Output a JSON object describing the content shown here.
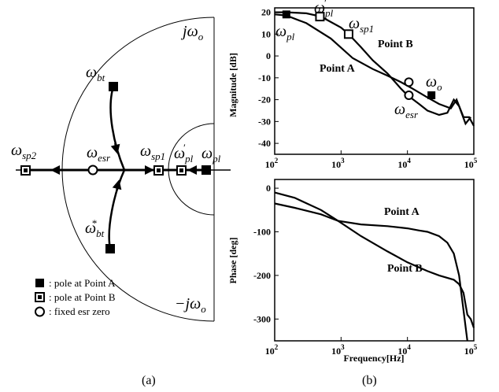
{
  "panel_a": {
    "caption": "(a)",
    "axis_labels": {
      "top": {
        "sym": "j",
        "main": "ω",
        "sub": "o"
      },
      "bottom": {
        "sym": "−j",
        "main": "ω",
        "sub": "o"
      }
    },
    "root_labels": [
      {
        "main": "ω",
        "sub": "bt",
        "sup": ""
      },
      {
        "main": "ω",
        "sub": "bt",
        "sup": "*"
      },
      {
        "main": "ω",
        "sub": "sp2",
        "sup": ""
      },
      {
        "main": "ω",
        "sub": "esr",
        "sup": ""
      },
      {
        "main": "ω",
        "sub": "sp1",
        "sup": ""
      },
      {
        "main": "ω",
        "sub": "pl",
        "sup": "′"
      },
      {
        "main": "ω",
        "sub": "pl",
        "sup": ""
      }
    ],
    "legend": [
      {
        "marker": "filled-square",
        "text": ": pole at Point A"
      },
      {
        "marker": "half-square",
        "text": ": pole at Point B"
      },
      {
        "marker": "circle",
        "text": ": fixed esr zero"
      }
    ]
  },
  "panel_b": {
    "caption": "(b)",
    "magnitude": {
      "ylabel": "Magnitude [dB]",
      "yticks": [
        "20",
        "10",
        "0",
        "-10",
        "-20",
        "-30",
        "-40"
      ],
      "xticks": [
        {
          "base": "10",
          "exp": "2"
        },
        {
          "base": "10",
          "exp": "3"
        },
        {
          "base": "10",
          "exp": "4"
        },
        {
          "base": "10",
          "exp": "5"
        }
      ],
      "labels": {
        "point_a": "Point A",
        "point_b": "Point B",
        "w_pl": {
          "main": "ω",
          "sub": "pl",
          "sup": ""
        },
        "w_pl_prime": {
          "main": "ω",
          "sub": "pl",
          "sup": "′"
        },
        "w_sp1": {
          "main": "ω",
          "sub": "sp1",
          "sup": ""
        },
        "w_o": {
          "main": "ω",
          "sub": "o",
          "sup": ""
        },
        "w_esr": {
          "main": "ω",
          "sub": "esr",
          "sup": ""
        }
      }
    },
    "phase": {
      "ylabel": "Phase [deg]",
      "xlabel": "Frequency[Hz]",
      "yticks": [
        "0",
        "-100",
        "-200",
        "-300"
      ],
      "xticks": [
        {
          "base": "10",
          "exp": "2"
        },
        {
          "base": "10",
          "exp": "3"
        },
        {
          "base": "10",
          "exp": "4"
        },
        {
          "base": "10",
          "exp": "5"
        }
      ],
      "labels": {
        "point_a": "Point A",
        "point_b": "Point B"
      }
    }
  },
  "chart_data": [
    {
      "type": "line",
      "panel": "magnitude",
      "ylabel": "Magnitude [dB]",
      "xlabel": "",
      "xscale": "log",
      "xlim": [
        100,
        100000
      ],
      "ylim": [
        -45,
        22
      ],
      "grid": false,
      "series": [
        {
          "name": "Point A",
          "x": [
            100,
            150,
            300,
            700,
            1500,
            3000,
            5000,
            8000,
            12000,
            20000,
            30000,
            45000,
            55000,
            70000,
            85000,
            100000
          ],
          "y": [
            19,
            18.5,
            15,
            8,
            -1,
            -6,
            -9,
            -12,
            -15,
            -19,
            -22,
            -24,
            -20,
            -28,
            -28,
            -32
          ]
        },
        {
          "name": "Point B",
          "x": [
            100,
            150,
            300,
            500,
            1000,
            1300,
            2000,
            3000,
            5000,
            8000,
            10000,
            15000,
            20000,
            30000,
            40000,
            50000,
            60000,
            75000,
            90000
          ],
          "y": [
            20,
            20,
            19.5,
            18,
            13,
            10,
            4,
            -2,
            -8,
            -15,
            -18,
            -22,
            -25,
            -27,
            -26,
            -20,
            -23,
            -31,
            -28
          ]
        }
      ],
      "markers": [
        {
          "name": "ω_pl",
          "x": 150,
          "y": 19,
          "shape": "filled-square"
        },
        {
          "name": "ω′_pl",
          "x": 480,
          "y": 18,
          "shape": "half-square"
        },
        {
          "name": "ω_sp1",
          "x": 1300,
          "y": 10,
          "shape": "half-square"
        },
        {
          "name": "ω_o",
          "x": 23000,
          "y": -18,
          "shape": "filled-square"
        },
        {
          "name": "ω_esr",
          "x": 10500,
          "y": -12,
          "shape": "circle"
        },
        {
          "name": "ω_esr",
          "x": 10500,
          "y": -18,
          "shape": "circle"
        }
      ]
    },
    {
      "type": "line",
      "panel": "phase",
      "ylabel": "Phase [deg]",
      "xlabel": "Frequency[Hz]",
      "xscale": "log",
      "xlim": [
        100,
        100000
      ],
      "ylim": [
        -350,
        20
      ],
      "grid": false,
      "series": [
        {
          "name": "Point A",
          "x": [
            100,
            200,
            500,
            900,
            2000,
            5000,
            10000,
            15000,
            20000,
            30000,
            40000,
            50000,
            60000,
            70000,
            80000
          ],
          "y": [
            -35,
            -45,
            -60,
            -75,
            -83,
            -87,
            -92,
            -97,
            -100,
            -110,
            -125,
            -150,
            -200,
            -280,
            -350
          ]
        },
        {
          "name": "Point B",
          "x": [
            100,
            200,
            500,
            900,
            2000,
            5000,
            10000,
            20000,
            30000,
            50000,
            60000,
            70000,
            80000,
            90000,
            100000
          ],
          "y": [
            -10,
            -22,
            -50,
            -75,
            -110,
            -145,
            -170,
            -190,
            -200,
            -210,
            -220,
            -240,
            -290,
            -300,
            -320
          ]
        }
      ]
    }
  ]
}
